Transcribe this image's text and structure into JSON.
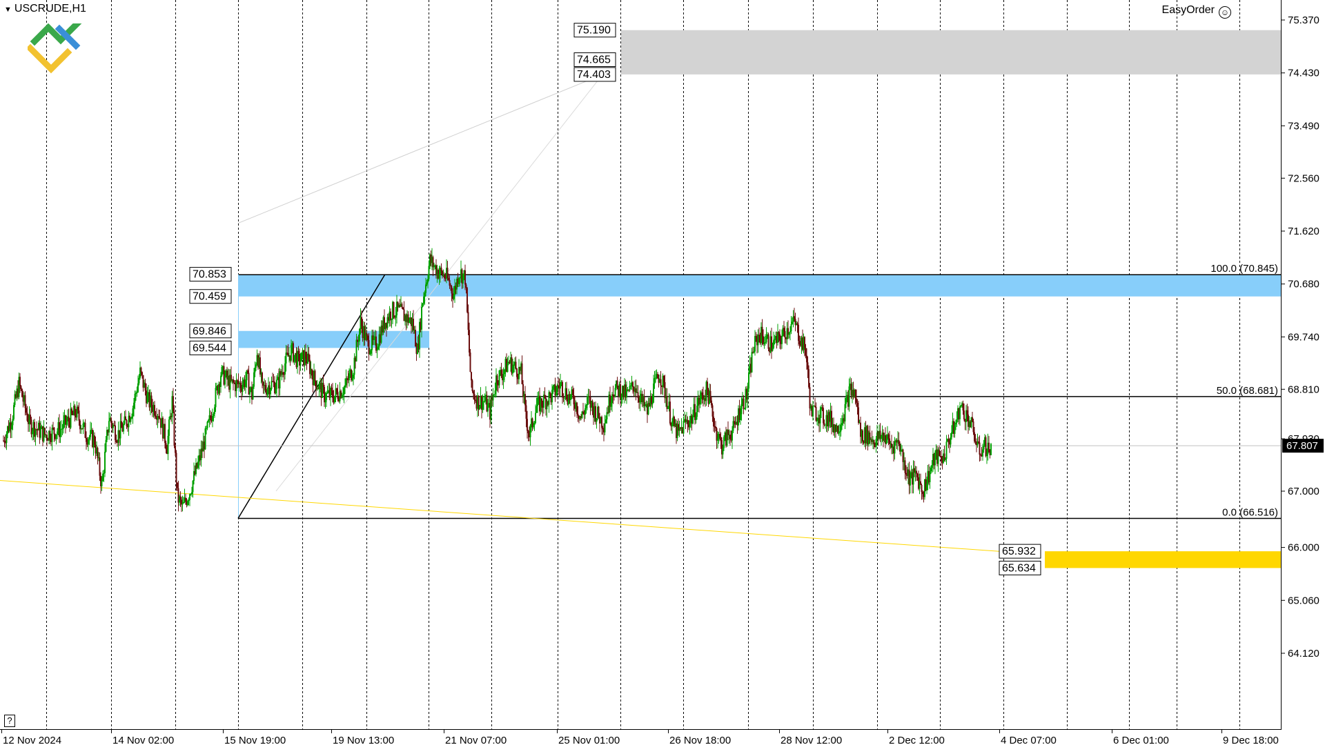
{
  "header": {
    "symbol": "USCRUDE,H1",
    "easy_order": "EasyOrder"
  },
  "help_label": "?",
  "colors": {
    "bull": "#00a000",
    "bear": "#6b0f0f",
    "grid": "#000000",
    "zone_blue": "#87cefa",
    "zone_gray": "#d3d3d3",
    "zone_yellow": "#ffd700",
    "trend_yellow": "#ffd700",
    "price_line": "#c0c0c0"
  },
  "chart_data": {
    "type": "candlestick",
    "symbol": "USCRUDE",
    "timeframe": "H1",
    "ylim": [
      63.5,
      75.75
    ],
    "y_ticks": [
      75.37,
      74.43,
      73.49,
      72.56,
      71.62,
      70.68,
      69.74,
      68.81,
      67.93,
      67.0,
      66.0,
      65.06,
      64.12
    ],
    "x_labels": [
      "12 Nov 2024",
      "14 Nov 02:00",
      "15 Nov 19:00",
      "19 Nov 13:00",
      "21 Nov 07:00",
      "25 Nov 01:00",
      "26 Nov 18:00",
      "28 Nov 12:00",
      "2 Dec 12:00",
      "4 Dec 07:00",
      "6 Dec 01:00",
      "9 Dec 18:00"
    ],
    "current_price": 67.807,
    "zones": [
      {
        "top": 75.19,
        "bottom": 74.403,
        "mid": 74.665,
        "color": "gray"
      },
      {
        "top": 70.853,
        "bottom": 70.459,
        "color": "blue"
      },
      {
        "top": 69.846,
        "bottom": 69.544,
        "color": "blue"
      },
      {
        "top": 65.932,
        "bottom": 65.634,
        "color": "yellow"
      }
    ],
    "zone_labels": [
      "75.190",
      "74.665",
      "74.403",
      "70.853",
      "70.459",
      "69.846",
      "69.544",
      "65.932",
      "65.634"
    ],
    "fibonacci": [
      {
        "label": "100.0 (70.845)",
        "price": 70.845
      },
      {
        "label": "50.0 (68.681)",
        "price": 68.681
      },
      {
        "label": "0.0 (66.516)",
        "price": 66.516
      }
    ],
    "path": [
      [
        0,
        67.9
      ],
      [
        8,
        68.3
      ],
      [
        15,
        68.9
      ],
      [
        25,
        68.2
      ],
      [
        40,
        68.0
      ],
      [
        55,
        68.1
      ],
      [
        70,
        68.4
      ],
      [
        80,
        68.0
      ],
      [
        88,
        67.9
      ],
      [
        95,
        67.1
      ],
      [
        102,
        68.3
      ],
      [
        110,
        68.0
      ],
      [
        118,
        68.2
      ],
      [
        125,
        68.5
      ],
      [
        132,
        69.1
      ],
      [
        140,
        68.6
      ],
      [
        150,
        68.4
      ],
      [
        158,
        67.8
      ],
      [
        163,
        68.6
      ],
      [
        168,
        66.9
      ],
      [
        173,
        66.7
      ],
      [
        180,
        67.0
      ],
      [
        190,
        67.6
      ],
      [
        200,
        68.3
      ],
      [
        210,
        69.1
      ],
      [
        220,
        68.9
      ],
      [
        230,
        68.9
      ],
      [
        235,
        69.0
      ],
      [
        240,
        68.7
      ],
      [
        245,
        69.5
      ],
      [
        250,
        68.8
      ],
      [
        258,
        68.9
      ],
      [
        265,
        68.9
      ],
      [
        270,
        69.2
      ],
      [
        278,
        69.5
      ],
      [
        285,
        69.3
      ],
      [
        292,
        69.4
      ],
      [
        300,
        69.0
      ],
      [
        310,
        68.7
      ],
      [
        320,
        68.7
      ],
      [
        330,
        68.85
      ],
      [
        338,
        69.2
      ],
      [
        345,
        70.0
      ],
      [
        352,
        69.6
      ],
      [
        360,
        69.6
      ],
      [
        368,
        70.0
      ],
      [
        375,
        70.2
      ],
      [
        382,
        70.2
      ],
      [
        388,
        70.1
      ],
      [
        395,
        70.0
      ],
      [
        400,
        69.5
      ],
      [
        405,
        70.4
      ],
      [
        412,
        71.1
      ],
      [
        420,
        70.9
      ],
      [
        428,
        70.8
      ],
      [
        435,
        70.5
      ],
      [
        440,
        70.9
      ],
      [
        446,
        70.8
      ],
      [
        452,
        68.8
      ],
      [
        458,
        68.6
      ],
      [
        465,
        68.6
      ],
      [
        470,
        68.4
      ],
      [
        476,
        69.0
      ],
      [
        482,
        69.1
      ],
      [
        488,
        69.3
      ],
      [
        494,
        69.2
      ],
      [
        500,
        69.1
      ],
      [
        504,
        68.4
      ],
      [
        508,
        68.0
      ],
      [
        515,
        68.5
      ],
      [
        522,
        68.6
      ],
      [
        530,
        68.7
      ],
      [
        538,
        68.9
      ],
      [
        545,
        68.7
      ],
      [
        552,
        68.6
      ],
      [
        558,
        68.3
      ],
      [
        565,
        68.6
      ],
      [
        572,
        68.4
      ],
      [
        580,
        68.2
      ],
      [
        588,
        68.8
      ],
      [
        595,
        68.8
      ],
      [
        602,
        68.7
      ],
      [
        610,
        68.9
      ],
      [
        616,
        68.6
      ],
      [
        622,
        68.4
      ],
      [
        628,
        68.8
      ],
      [
        634,
        69.1
      ],
      [
        640,
        68.7
      ],
      [
        646,
        68.2
      ],
      [
        652,
        68.0
      ],
      [
        658,
        68.2
      ],
      [
        665,
        68.3
      ],
      [
        672,
        68.6
      ],
      [
        680,
        68.8
      ],
      [
        688,
        68.1
      ],
      [
        694,
        67.8
      ],
      [
        700,
        68.0
      ],
      [
        706,
        68.1
      ],
      [
        712,
        68.5
      ],
      [
        718,
        68.7
      ],
      [
        724,
        69.5
      ],
      [
        730,
        69.8
      ],
      [
        736,
        69.7
      ],
      [
        742,
        69.6
      ],
      [
        750,
        69.7
      ],
      [
        758,
        69.9
      ],
      [
        764,
        70.0
      ],
      [
        770,
        69.7
      ],
      [
        775,
        69.5
      ],
      [
        780,
        68.4
      ],
      [
        786,
        68.4
      ],
      [
        792,
        68.3
      ],
      [
        798,
        68.3
      ],
      [
        805,
        68.1
      ],
      [
        812,
        68.4
      ],
      [
        818,
        68.8
      ],
      [
        823,
        68.7
      ],
      [
        828,
        68.0
      ],
      [
        834,
        68.0
      ],
      [
        842,
        67.9
      ],
      [
        850,
        68.0
      ],
      [
        858,
        67.8
      ],
      [
        865,
        67.9
      ],
      [
        870,
        67.5
      ],
      [
        876,
        67.2
      ],
      [
        882,
        67.3
      ],
      [
        888,
        67.0
      ],
      [
        894,
        67.3
      ],
      [
        900,
        67.6
      ],
      [
        908,
        67.6
      ],
      [
        915,
        68.0
      ],
      [
        920,
        68.2
      ],
      [
        924,
        68.5
      ],
      [
        928,
        68.4
      ],
      [
        932,
        68.3
      ],
      [
        938,
        68.0
      ],
      [
        942,
        67.7
      ],
      [
        948,
        67.8
      ],
      [
        955,
        67.7
      ]
    ],
    "trend_lines": [
      "fib anchor 66.516 → 70.845",
      "gray targets",
      "yellow support"
    ]
  }
}
